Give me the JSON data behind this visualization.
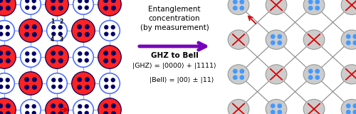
{
  "bg_color": "#ffffff",
  "left_grid_color": "#88aaff",
  "red_fill": "#ff2222",
  "dot_color": "#000066",
  "blue_outline_color": "#4466ff",
  "arrow_text1": "Entanglement\nconcentration\n(by measurement)",
  "arrow_text2": "GHZ to Bell",
  "arrow_color": "#7700bb",
  "ghz_eq": "|GHZ⟩ = |0000⟩ + |1111⟩",
  "bell_eq": "|Bell⟩ = |00⟩ ± |11⟩",
  "red_arrow_color": "#cc0000",
  "right_grid_color": "#888888",
  "right_cross_color": "#dd0000",
  "right_dot_color": "#4499ff",
  "right_circle_fill": "#cccccc",
  "right_circle_edge": "#999999"
}
